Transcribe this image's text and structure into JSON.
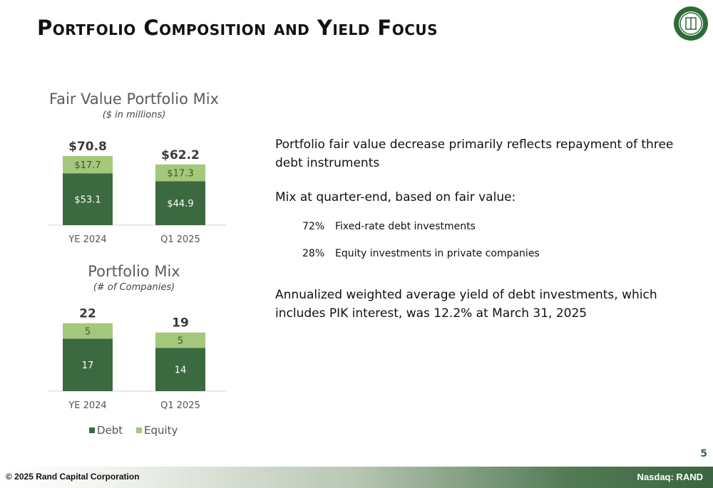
{
  "slide": {
    "title": "Portfolio Composition and Yield Focus",
    "page_number": "5"
  },
  "colors": {
    "debt": "#3b6940",
    "equity": "#a3c77b",
    "accent": "#2e6b37"
  },
  "chart_data": [
    {
      "type": "bar",
      "stacked": true,
      "title": "Fair Value Portfolio Mix",
      "subtitle": "($ in millions)",
      "categories": [
        "YE 2024",
        "Q1 2025"
      ],
      "series": [
        {
          "name": "Debt",
          "values": [
            53.1,
            44.9
          ],
          "labels": [
            "$53.1",
            "$44.9"
          ]
        },
        {
          "name": "Equity",
          "values": [
            17.7,
            17.3
          ],
          "labels": [
            "$17.7",
            "$17.3"
          ]
        }
      ],
      "totals": [
        70.8,
        62.2
      ],
      "total_labels": [
        "$70.8",
        "$62.2"
      ],
      "ylim": [
        0,
        80
      ]
    },
    {
      "type": "bar",
      "stacked": true,
      "title": "Portfolio Mix",
      "subtitle": "(# of Companies)",
      "categories": [
        "YE 2024",
        "Q1 2025"
      ],
      "series": [
        {
          "name": "Debt",
          "values": [
            17,
            14
          ],
          "labels": [
            "17",
            "14"
          ]
        },
        {
          "name": "Equity",
          "values": [
            5,
            5
          ],
          "labels": [
            "5",
            "5"
          ]
        }
      ],
      "totals": [
        22,
        19
      ],
      "total_labels": [
        "22",
        "19"
      ],
      "ylim": [
        0,
        25
      ]
    }
  ],
  "legend": {
    "debt": "Debt",
    "equity": "Equity"
  },
  "text": {
    "p1": "Portfolio fair value decrease primarily reflects repayment of three debt instruments",
    "p2": "Mix at quarter-end, based on fair value:",
    "mix": [
      {
        "pct": "72%",
        "label": "Fixed-rate debt investments"
      },
      {
        "pct": "28%",
        "label": "Equity investments in private companies"
      }
    ],
    "p3": "Annualized weighted average yield of debt investments, which includes PIK interest, was 12.2% at March 31, 2025"
  },
  "footer": {
    "copyright": "© 2025 Rand Capital Corporation",
    "ticker": "Nasdaq: RAND"
  }
}
